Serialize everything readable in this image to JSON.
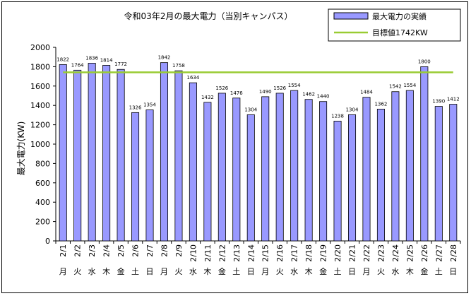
{
  "chart_data": {
    "type": "bar",
    "title": "令和03年2月の最大電力（当別キャンパス）",
    "ylabel": "最大電力(KW)",
    "xlabel": "",
    "ylim": [
      0,
      2000
    ],
    "yticks": [
      0,
      200,
      400,
      600,
      800,
      1000,
      1200,
      1400,
      1600,
      1800,
      2000
    ],
    "grid": false,
    "legend_position": "top-right",
    "categories": [
      "2/1",
      "2/2",
      "2/3",
      "2/4",
      "2/5",
      "2/6",
      "2/7",
      "2/8",
      "2/9",
      "2/10",
      "2/11",
      "2/12",
      "2/13",
      "2/14",
      "2/15",
      "2/16",
      "2/17",
      "2/18",
      "2/19",
      "2/20",
      "2/21",
      "2/22",
      "2/23",
      "2/24",
      "2/25",
      "2/26",
      "2/27",
      "2/28"
    ],
    "weekdays": [
      "月",
      "火",
      "水",
      "木",
      "金",
      "土",
      "日",
      "月",
      "火",
      "水",
      "木",
      "金",
      "土",
      "日",
      "月",
      "火",
      "水",
      "木",
      "金",
      "土",
      "日",
      "月",
      "火",
      "水",
      "木",
      "金",
      "土",
      "日"
    ],
    "series": [
      {
        "name": "最大電力の実績",
        "type": "bar",
        "color": "#9999ff",
        "values": [
          1822,
          1764,
          1836,
          1814,
          1772,
          1326,
          1354,
          1842,
          1758,
          1634,
          1432,
          1526,
          1476,
          1304,
          1490,
          1526,
          1554,
          1462,
          1440,
          1238,
          1304,
          1484,
          1362,
          1542,
          1554,
          1800,
          1390,
          1412
        ]
      },
      {
        "name": "目標値1742KW",
        "type": "line",
        "color": "#99cc33",
        "value": 1742
      }
    ]
  }
}
